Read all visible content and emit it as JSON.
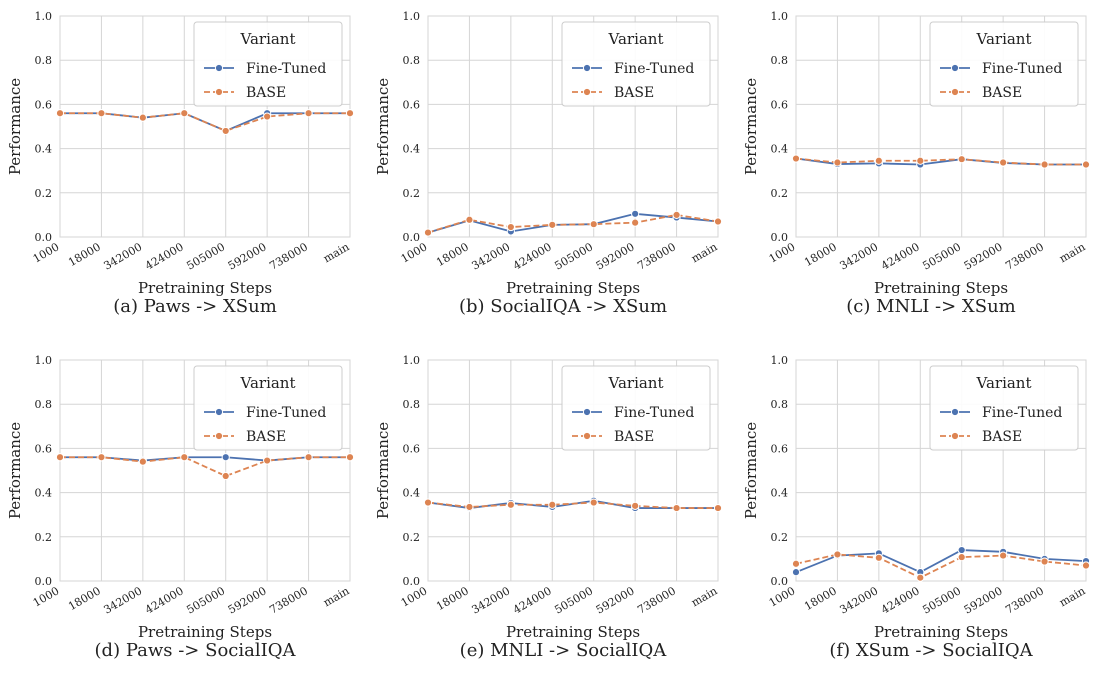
{
  "figure": {
    "background": "#ffffff",
    "panel_background": "#ffffff",
    "grid_color": "#d5d5d5",
    "series_colors": [
      "#4c72b0",
      "#dd8452"
    ]
  },
  "chart_data": [
    {
      "type": "line",
      "caption": "(a) Paws -> XSum",
      "xlabel": "Pretraining Steps",
      "ylabel": "Performance",
      "ylim": [
        0,
        1.0
      ],
      "yticks": [
        "0.0",
        "0.2",
        "0.4",
        "0.6",
        "0.8",
        "1.0"
      ],
      "categories": [
        "1000",
        "18000",
        "342000",
        "424000",
        "505000",
        "592000",
        "738000",
        "main"
      ],
      "grid": true,
      "legend": {
        "title": "Variant",
        "position": "top-right"
      },
      "series": [
        {
          "name": "Fine-Tuned",
          "style": "solid",
          "values": [
            0.56,
            0.56,
            0.54,
            0.56,
            0.48,
            0.56,
            0.56,
            0.56
          ]
        },
        {
          "name": "BASE",
          "style": "dashed",
          "values": [
            0.56,
            0.56,
            0.54,
            0.56,
            0.48,
            0.545,
            0.56,
            0.56
          ]
        }
      ]
    },
    {
      "type": "line",
      "caption": "(b) SocialIQA -> XSum",
      "xlabel": "Pretraining Steps",
      "ylabel": "Performance",
      "ylim": [
        0,
        1.0
      ],
      "yticks": [
        "0.0",
        "0.2",
        "0.4",
        "0.6",
        "0.8",
        "1.0"
      ],
      "categories": [
        "1000",
        "18000",
        "342000",
        "424000",
        "505000",
        "592000",
        "738000",
        "main"
      ],
      "grid": true,
      "legend": {
        "title": "Variant",
        "position": "top-right"
      },
      "series": [
        {
          "name": "Fine-Tuned",
          "style": "solid",
          "values": [
            0.02,
            0.075,
            0.025,
            0.055,
            0.058,
            0.105,
            0.088,
            0.07
          ]
        },
        {
          "name": "BASE",
          "style": "dashed",
          "values": [
            0.02,
            0.078,
            0.045,
            0.055,
            0.058,
            0.065,
            0.1,
            0.07
          ]
        }
      ]
    },
    {
      "type": "line",
      "caption": "(c) MNLI -> XSum",
      "xlabel": "Pretraining Steps",
      "ylabel": "Performance",
      "ylim": [
        0,
        1.0
      ],
      "yticks": [
        "0.0",
        "0.2",
        "0.4",
        "0.6",
        "0.8",
        "1.0"
      ],
      "categories": [
        "1000",
        "18000",
        "342000",
        "424000",
        "505000",
        "592000",
        "738000",
        "main"
      ],
      "grid": true,
      "legend": {
        "title": "Variant",
        "position": "top-right"
      },
      "series": [
        {
          "name": "Fine-Tuned",
          "style": "solid",
          "values": [
            0.355,
            0.33,
            0.333,
            0.328,
            0.352,
            0.335,
            0.328,
            0.328
          ]
        },
        {
          "name": "BASE",
          "style": "dashed",
          "values": [
            0.355,
            0.337,
            0.345,
            0.345,
            0.352,
            0.337,
            0.328,
            0.328
          ]
        }
      ]
    },
    {
      "type": "line",
      "caption": "(d) Paws -> SocialIQA",
      "xlabel": "Pretraining Steps",
      "ylabel": "Performance",
      "ylim": [
        0,
        1.0
      ],
      "yticks": [
        "0.0",
        "0.2",
        "0.4",
        "0.6",
        "0.8",
        "1.0"
      ],
      "categories": [
        "1000",
        "18000",
        "342000",
        "424000",
        "505000",
        "592000",
        "738000",
        "main"
      ],
      "grid": true,
      "legend": {
        "title": "Variant",
        "position": "top-right"
      },
      "series": [
        {
          "name": "Fine-Tuned",
          "style": "solid",
          "values": [
            0.56,
            0.56,
            0.545,
            0.56,
            0.56,
            0.545,
            0.56,
            0.56
          ]
        },
        {
          "name": "BASE",
          "style": "dashed",
          "values": [
            0.56,
            0.56,
            0.54,
            0.56,
            0.475,
            0.545,
            0.56,
            0.56
          ]
        }
      ]
    },
    {
      "type": "line",
      "caption": "(e) MNLI -> SocialIQA",
      "xlabel": "Pretraining Steps",
      "ylabel": "Performance",
      "ylim": [
        0,
        1.0
      ],
      "yticks": [
        "0.0",
        "0.2",
        "0.4",
        "0.6",
        "0.8",
        "1.0"
      ],
      "categories": [
        "1000",
        "18000",
        "342000",
        "424000",
        "505000",
        "592000",
        "738000",
        "main"
      ],
      "grid": true,
      "legend": {
        "title": "Variant",
        "position": "top-right"
      },
      "series": [
        {
          "name": "Fine-Tuned",
          "style": "solid",
          "values": [
            0.355,
            0.33,
            0.353,
            0.335,
            0.363,
            0.33,
            0.33,
            0.33
          ]
        },
        {
          "name": "BASE",
          "style": "dashed",
          "values": [
            0.355,
            0.335,
            0.345,
            0.345,
            0.355,
            0.34,
            0.33,
            0.33
          ]
        }
      ]
    },
    {
      "type": "line",
      "caption": "(f) XSum -> SocialIQA",
      "xlabel": "Pretraining Steps",
      "ylabel": "Performance",
      "ylim": [
        0,
        1.0
      ],
      "yticks": [
        "0.0",
        "0.2",
        "0.4",
        "0.6",
        "0.8",
        "1.0"
      ],
      "categories": [
        "1000",
        "18000",
        "342000",
        "424000",
        "505000",
        "592000",
        "738000",
        "main"
      ],
      "grid": true,
      "legend": {
        "title": "Variant",
        "position": "top-right"
      },
      "series": [
        {
          "name": "Fine-Tuned",
          "style": "solid",
          "values": [
            0.04,
            0.115,
            0.125,
            0.04,
            0.14,
            0.132,
            0.1,
            0.09
          ]
        },
        {
          "name": "BASE",
          "style": "dashed",
          "values": [
            0.078,
            0.12,
            0.105,
            0.015,
            0.108,
            0.115,
            0.088,
            0.07
          ]
        }
      ]
    }
  ]
}
